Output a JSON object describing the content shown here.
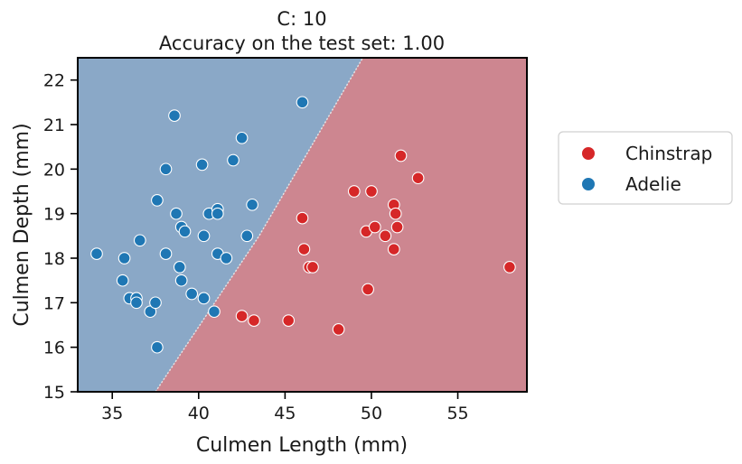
{
  "chart_data": {
    "type": "scatter",
    "title": "C: 10",
    "subtitle": "Accuracy on the test set: 1.00",
    "xlabel": "Culmen Length (mm)",
    "ylabel": "Culmen Depth (mm)",
    "xlim": [
      33,
      59
    ],
    "ylim": [
      15,
      22.5
    ],
    "xticks": [
      35,
      40,
      45,
      50,
      55
    ],
    "yticks": [
      15,
      16,
      17,
      18,
      19,
      20,
      21,
      22
    ],
    "grid": false,
    "legend_position": "outside-right",
    "decision_boundary": {
      "points": [
        [
          37.5,
          15
        ],
        [
          43.5,
          18.5
        ],
        [
          49.5,
          22.5
        ]
      ],
      "left_region_class": "Adelie",
      "right_region_class": "Chinstrap"
    },
    "series": [
      {
        "name": "Chinstrap",
        "color": "#d62728",
        "region_color": "#cd8690",
        "points": [
          [
            42.5,
            16.7
          ],
          [
            43.2,
            16.6
          ],
          [
            45.2,
            16.6
          ],
          [
            46.0,
            18.9
          ],
          [
            46.1,
            18.2
          ],
          [
            46.4,
            17.8
          ],
          [
            46.6,
            17.8
          ],
          [
            48.1,
            16.4
          ],
          [
            49.0,
            19.5
          ],
          [
            49.7,
            18.6
          ],
          [
            49.8,
            17.3
          ],
          [
            50.0,
            19.5
          ],
          [
            50.2,
            18.7
          ],
          [
            50.8,
            18.5
          ],
          [
            51.3,
            19.2
          ],
          [
            51.3,
            18.2
          ],
          [
            51.4,
            19.0
          ],
          [
            51.5,
            18.7
          ],
          [
            51.7,
            20.3
          ],
          [
            52.7,
            19.8
          ],
          [
            58.0,
            17.8
          ]
        ]
      },
      {
        "name": "Adelie",
        "color": "#1f77b4",
        "region_color": "#8aa8c7",
        "points": [
          [
            34.1,
            18.1
          ],
          [
            35.6,
            17.5
          ],
          [
            35.7,
            18.0
          ],
          [
            36.0,
            17.1
          ],
          [
            36.4,
            17.1
          ],
          [
            36.4,
            17.0
          ],
          [
            36.6,
            18.4
          ],
          [
            37.2,
            16.8
          ],
          [
            37.5,
            17.0
          ],
          [
            37.6,
            16.0
          ],
          [
            37.6,
            19.3
          ],
          [
            38.1,
            18.1
          ],
          [
            38.1,
            20.0
          ],
          [
            38.6,
            21.2
          ],
          [
            38.7,
            19.0
          ],
          [
            38.9,
            17.8
          ],
          [
            39.0,
            18.7
          ],
          [
            39.0,
            17.5
          ],
          [
            39.2,
            18.6
          ],
          [
            39.6,
            17.2
          ],
          [
            40.2,
            20.1
          ],
          [
            40.3,
            18.5
          ],
          [
            40.3,
            17.1
          ],
          [
            40.6,
            19.0
          ],
          [
            40.9,
            16.8
          ],
          [
            41.1,
            19.1
          ],
          [
            41.1,
            19.0
          ],
          [
            41.1,
            18.1
          ],
          [
            41.6,
            18.0
          ],
          [
            42.0,
            20.2
          ],
          [
            42.5,
            20.7
          ],
          [
            42.8,
            18.5
          ],
          [
            43.1,
            19.2
          ],
          [
            46.0,
            21.5
          ]
        ]
      }
    ]
  }
}
